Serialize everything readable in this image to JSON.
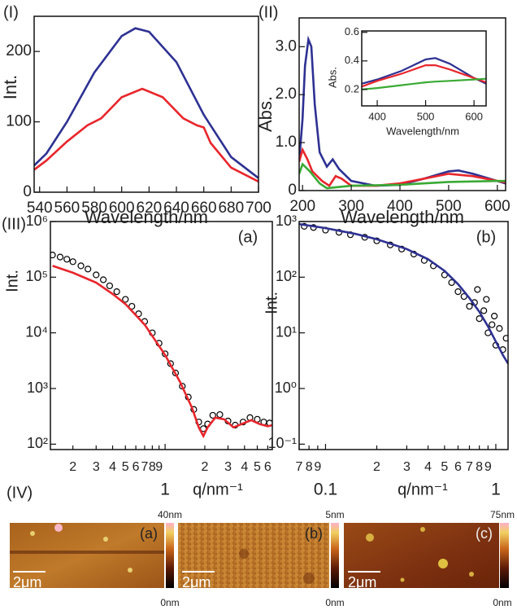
{
  "chart_data": [
    {
      "type": "line",
      "panel_label": "(I)",
      "x_label": "Wavelength/nm",
      "y_label": "Int.",
      "xlim": [
        536,
        700
      ],
      "ylim": [
        0,
        250
      ],
      "xticks": [
        540,
        560,
        580,
        600,
        620,
        640,
        660,
        680,
        700
      ],
      "yticks": [
        0,
        100,
        200
      ],
      "series": [
        {
          "color": "#2e3192",
          "x": [
            536,
            545,
            560,
            580,
            600,
            610,
            620,
            640,
            660,
            680,
            700
          ],
          "values": [
            38,
            55,
            100,
            170,
            222,
            233,
            228,
            185,
            110,
            50,
            20
          ]
        },
        {
          "color": "#e8262c",
          "x": [
            536,
            545,
            560,
            575,
            585,
            600,
            615,
            630,
            645,
            655,
            660,
            665,
            680,
            700
          ],
          "values": [
            32,
            45,
            72,
            95,
            105,
            135,
            147,
            135,
            105,
            95,
            92,
            70,
            35,
            15
          ]
        }
      ]
    },
    {
      "type": "line",
      "panel_label": "(II)",
      "x_label": "Wavelength/nm",
      "y_label": "Abs.",
      "xlim": [
        193,
        617
      ],
      "ylim": [
        0,
        3.6
      ],
      "xticks": [
        200,
        300,
        400,
        500,
        600
      ],
      "yticks": [
        0,
        {
          "value": 1,
          "label": "1.0"
        },
        {
          "value": 2,
          "label": "2.0"
        },
        {
          "value": 3,
          "label": "3.0"
        }
      ],
      "series": [
        {
          "color": "#2e3192",
          "x": [
            193,
            200,
            205,
            212,
            218,
            225,
            235,
            250,
            262,
            275,
            300,
            350,
            400,
            450,
            500,
            520,
            550,
            600,
            617
          ],
          "values": [
            0.6,
            1.5,
            2.6,
            3.15,
            3.0,
            1.8,
            0.8,
            0.5,
            0.65,
            0.45,
            0.2,
            0.1,
            0.12,
            0.25,
            0.4,
            0.42,
            0.35,
            0.2,
            0.15
          ]
        },
        {
          "color": "#e8262c",
          "x": [
            193,
            200,
            210,
            220,
            240,
            255,
            268,
            280,
            300,
            350,
            400,
            450,
            500,
            550,
            600,
            617
          ],
          "values": [
            0.6,
            0.85,
            0.65,
            0.4,
            0.2,
            0.1,
            0.3,
            0.25,
            0.1,
            0.1,
            0.15,
            0.25,
            0.35,
            0.3,
            0.2,
            0.17
          ]
        },
        {
          "color": "#3aaa35",
          "x": [
            193,
            200,
            215,
            235,
            250,
            300,
            400,
            500,
            600,
            617
          ],
          "values": [
            0.35,
            0.55,
            0.4,
            0.15,
            0.05,
            0.1,
            0.12,
            0.18,
            0.2,
            0.2
          ]
        }
      ]
    },
    {
      "type": "line",
      "x_label": "Wavelength/nm",
      "y_label": "Abs.",
      "xlim": [
        368,
        625
      ],
      "ylim": [
        0.085,
        0.61
      ],
      "xticks": [
        400,
        500,
        600
      ],
      "yticks": [
        0.2,
        0.4,
        0.6
      ],
      "series": [
        {
          "color": "#2e3192",
          "x": [
            368,
            400,
            450,
            500,
            520,
            550,
            600,
            625
          ],
          "values": [
            0.24,
            0.27,
            0.33,
            0.41,
            0.42,
            0.38,
            0.28,
            0.24
          ]
        },
        {
          "color": "#e8262c",
          "x": [
            368,
            400,
            450,
            500,
            520,
            550,
            600,
            625
          ],
          "values": [
            0.22,
            0.26,
            0.31,
            0.37,
            0.37,
            0.34,
            0.28,
            0.25
          ]
        },
        {
          "color": "#3aaa35",
          "x": [
            368,
            400,
            450,
            500,
            520,
            550,
            600,
            625
          ],
          "values": [
            0.2,
            0.21,
            0.23,
            0.25,
            0.255,
            0.26,
            0.27,
            0.275
          ]
        }
      ]
    },
    {
      "type": "scatter",
      "panel_label": "(III)",
      "annotation": "(a)",
      "x_label": "q/nm⁻¹",
      "y_label": "Int.",
      "xscale": "log",
      "yscale": "log",
      "xlim": [
        0.135,
        6.5
      ],
      "ylim": [
        80,
        1000000
      ],
      "xticks": [
        {
          "value": 0.2,
          "label": "2"
        },
        {
          "value": 0.3,
          "label": "3"
        },
        {
          "value": 0.4,
          "label": "4"
        },
        {
          "value": 0.5,
          "label": "5"
        },
        {
          "value": 0.6,
          "label": "6"
        },
        {
          "value": 0.7,
          "label": "7"
        },
        {
          "value": 0.8,
          "label": "8"
        },
        {
          "value": 0.9,
          "label": "9"
        },
        1,
        {
          "value": 2,
          "label": "2"
        },
        {
          "value": 3,
          "label": "3"
        },
        {
          "value": 4,
          "label": "4"
        },
        {
          "value": 5,
          "label": "5"
        },
        {
          "value": 6,
          "label": "6"
        }
      ],
      "yticks": [
        {
          "value": 100,
          "label": "10²"
        },
        {
          "value": 1000,
          "label": "10³"
        },
        {
          "value": 10000,
          "label": "10⁴"
        },
        {
          "value": 100000,
          "label": "10⁵"
        },
        {
          "value": 1000000,
          "label": "10⁶"
        }
      ],
      "series": [
        {
          "type": "scatter",
          "color": "#000000",
          "x": [
            0.14,
            0.16,
            0.18,
            0.2,
            0.23,
            0.26,
            0.3,
            0.34,
            0.38,
            0.43,
            0.5,
            0.56,
            0.63,
            0.7,
            0.8,
            0.9,
            1.0,
            1.1,
            1.2,
            1.35,
            1.5,
            1.65,
            1.8,
            1.95,
            2.1,
            2.3,
            2.6,
            3.0,
            3.4,
            3.9,
            4.4,
            5.0,
            5.6,
            6.2
          ],
          "values": [
            250000,
            230000,
            210000,
            190000,
            160000,
            140000,
            110000,
            90000,
            70000,
            55000,
            40000,
            30000,
            22000,
            16000,
            10000,
            6500,
            4200,
            2800,
            1900,
            1100,
            700,
            420,
            250,
            190,
            230,
            330,
            340,
            260,
            220,
            250,
            300,
            280,
            250,
            240
          ]
        },
        {
          "type": "line",
          "color": "#e8262c",
          "x": [
            0.14,
            0.2,
            0.3,
            0.4,
            0.5,
            0.7,
            1.0,
            1.3,
            1.6,
            1.8,
            1.95,
            2.1,
            2.4,
            2.8,
            3.3,
            3.8,
            4.5,
            5.2,
            6.0,
            6.5
          ],
          "values": [
            160000,
            120000,
            80000,
            50000,
            33000,
            14000,
            4000,
            1300,
            450,
            200,
            140,
            200,
            300,
            280,
            200,
            230,
            270,
            230,
            210,
            220
          ]
        }
      ]
    },
    {
      "type": "scatter",
      "annotation": "(b)",
      "x_label": "q/nm⁻¹",
      "y_label": "Int.",
      "xscale": "log",
      "yscale": "log",
      "xlim": [
        0.07,
        1.18
      ],
      "ylim": [
        0.08,
        1000
      ],
      "xticks": [
        {
          "value": 0.07,
          "label": "7"
        },
        {
          "value": 0.08,
          "label": "8"
        },
        {
          "value": 0.09,
          "label": "9"
        },
        0.1,
        {
          "value": 0.2,
          "label": "2"
        },
        {
          "value": 0.3,
          "label": "3"
        },
        {
          "value": 0.4,
          "label": "4"
        },
        {
          "value": 0.5,
          "label": "5"
        },
        {
          "value": 0.6,
          "label": "6"
        },
        {
          "value": 0.7,
          "label": "7"
        },
        {
          "value": 0.8,
          "label": "8"
        },
        {
          "value": 0.9,
          "label": "9"
        },
        1
      ],
      "yticks": [
        {
          "value": 0.1,
          "label": "10⁻¹"
        },
        {
          "value": 1,
          "label": "10⁰"
        },
        {
          "value": 10,
          "label": "10¹"
        },
        {
          "value": 100,
          "label": "10²"
        },
        {
          "value": 1000,
          "label": "10³"
        }
      ],
      "series": [
        {
          "type": "scatter",
          "color": "#000000",
          "x": [
            0.075,
            0.085,
            0.1,
            0.12,
            0.14,
            0.17,
            0.2,
            0.24,
            0.28,
            0.33,
            0.38,
            0.43,
            0.5,
            0.55,
            0.6,
            0.65,
            0.7,
            0.75,
            0.78,
            0.8,
            0.85,
            0.88,
            0.9,
            0.95,
            0.98,
            1.0,
            1.05,
            1.1,
            1.15
          ],
          "values": [
            820,
            780,
            700,
            640,
            580,
            520,
            450,
            380,
            320,
            260,
            200,
            160,
            110,
            80,
            55,
            45,
            30,
            35,
            60,
            18,
            25,
            40,
            10,
            14,
            20,
            6,
            12,
            5,
            8
          ]
        },
        {
          "type": "line",
          "color": "#2e3192",
          "x": [
            0.07,
            0.1,
            0.15,
            0.2,
            0.3,
            0.4,
            0.5,
            0.6,
            0.7,
            0.8,
            0.9,
            1.0,
            1.1,
            1.18
          ],
          "values": [
            900,
            760,
            600,
            480,
            320,
            210,
            130,
            75,
            42,
            24,
            13,
            7,
            4,
            2.8
          ]
        }
      ]
    }
  ],
  "panel_iv": {
    "label": "(IV)",
    "images": [
      {
        "label": "(a)",
        "scale_bar": "2μm",
        "colorbar_max": "40nm",
        "colorbar_min": "0nm"
      },
      {
        "label": "(b)",
        "scale_bar": "2μm",
        "colorbar_max": "5nm",
        "colorbar_min": "0nm"
      },
      {
        "label": "(c)",
        "scale_bar": "2μm",
        "colorbar_max": "75nm",
        "colorbar_min": "0nm"
      }
    ]
  }
}
